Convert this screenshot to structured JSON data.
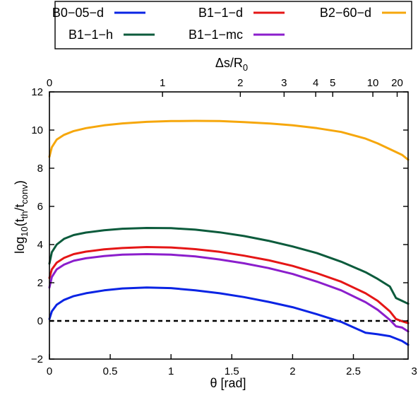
{
  "chart_data": {
    "type": "line",
    "xlabel": "θ [rad]",
    "ylabel_base": "log",
    "ylabel_base_sub": "10",
    "ylabel_paren_open": "(t",
    "ylabel_num_sub": "th",
    "ylabel_slash": "/t",
    "ylabel_den_sub": "conv",
    "ylabel_paren_close": ")",
    "top_xlabel_main": "Δs/R",
    "top_xlabel_sub": "0",
    "xlim": [
      0,
      2.95
    ],
    "ylim": [
      -2,
      12
    ],
    "x_ticks": [
      "0",
      "0.5",
      "1",
      "1.5",
      "2",
      "2.5",
      "3"
    ],
    "x_tick_values": [
      0,
      0.5,
      1,
      1.5,
      2,
      2.5,
      3
    ],
    "y_ticks": [
      "−2",
      "0",
      "2",
      "4",
      "6",
      "8",
      "10",
      "12"
    ],
    "y_tick_values": [
      -2,
      0,
      2,
      4,
      6,
      8,
      10,
      12
    ],
    "top_ticks": [
      {
        "label": "0",
        "theta": 0.0
      },
      {
        "label": "1",
        "theta": 0.93
      },
      {
        "label": "2",
        "theta": 1.57
      },
      {
        "label": "3",
        "theta": 1.93
      },
      {
        "label": "4",
        "theta": 2.19
      },
      {
        "label": "5",
        "theta": 2.33
      },
      {
        "label": "10",
        "theta": 2.66
      },
      {
        "label": "20",
        "theta": 2.86
      }
    ],
    "reference_line": {
      "y": 0,
      "style": "dashed",
      "color": "#000000"
    },
    "legend_placement": "top, boxed",
    "series": [
      {
        "name": "B0−05−d",
        "color": "#0a24e4",
        "x": [
          0,
          0.02,
          0.06,
          0.12,
          0.2,
          0.3,
          0.45,
          0.6,
          0.8,
          1.0,
          1.2,
          1.4,
          1.6,
          1.8,
          2.0,
          2.2,
          2.4,
          2.6,
          2.7,
          2.8,
          2.9,
          2.95
        ],
        "y": [
          0.1,
          0.5,
          0.85,
          1.1,
          1.3,
          1.45,
          1.6,
          1.7,
          1.75,
          1.72,
          1.6,
          1.45,
          1.25,
          1.0,
          0.72,
          0.35,
          -0.05,
          -0.62,
          -0.7,
          -0.8,
          -1.05,
          -1.25
        ]
      },
      {
        "name": "B1−1−d",
        "color": "#e51616",
        "x": [
          0,
          0.02,
          0.06,
          0.12,
          0.2,
          0.3,
          0.45,
          0.6,
          0.8,
          1.0,
          1.2,
          1.4,
          1.6,
          1.8,
          2.0,
          2.2,
          2.4,
          2.6,
          2.7,
          2.8,
          2.85,
          2.9,
          2.95
        ],
        "y": [
          2.25,
          2.7,
          3.05,
          3.3,
          3.5,
          3.63,
          3.75,
          3.82,
          3.87,
          3.85,
          3.76,
          3.62,
          3.42,
          3.18,
          2.88,
          2.5,
          2.05,
          1.45,
          1.05,
          0.5,
          0.1,
          -0.02,
          -0.12
        ]
      },
      {
        "name": "B2−60−d",
        "color": "#f6a70c",
        "x": [
          0,
          0.02,
          0.06,
          0.12,
          0.2,
          0.3,
          0.45,
          0.6,
          0.8,
          1.0,
          1.2,
          1.4,
          1.6,
          1.8,
          2.0,
          2.2,
          2.4,
          2.6,
          2.7,
          2.8,
          2.9,
          2.95
        ],
        "y": [
          8.6,
          9.1,
          9.5,
          9.75,
          9.95,
          10.1,
          10.25,
          10.35,
          10.43,
          10.47,
          10.48,
          10.47,
          10.42,
          10.35,
          10.25,
          10.1,
          9.9,
          9.55,
          9.3,
          9.0,
          8.7,
          8.45
        ]
      },
      {
        "name": "B1−1−h",
        "color": "#0c5b3c",
        "x": [
          0,
          0.02,
          0.06,
          0.12,
          0.2,
          0.3,
          0.45,
          0.6,
          0.8,
          1.0,
          1.2,
          1.4,
          1.6,
          1.8,
          2.0,
          2.2,
          2.4,
          2.6,
          2.7,
          2.8,
          2.85,
          2.9,
          2.95
        ],
        "y": [
          3.0,
          3.6,
          4.0,
          4.3,
          4.5,
          4.63,
          4.75,
          4.83,
          4.87,
          4.86,
          4.78,
          4.64,
          4.45,
          4.2,
          3.9,
          3.55,
          3.1,
          2.55,
          2.2,
          1.8,
          1.2,
          1.05,
          0.9
        ]
      },
      {
        "name": "B1−1−mc",
        "color": "#8b1ecc",
        "x": [
          0,
          0.02,
          0.06,
          0.12,
          0.2,
          0.3,
          0.45,
          0.6,
          0.8,
          1.0,
          1.2,
          1.4,
          1.6,
          1.8,
          2.0,
          2.2,
          2.4,
          2.6,
          2.7,
          2.8,
          2.85,
          2.9,
          2.95
        ],
        "y": [
          1.75,
          2.3,
          2.7,
          2.95,
          3.15,
          3.28,
          3.4,
          3.47,
          3.5,
          3.47,
          3.38,
          3.22,
          3.02,
          2.77,
          2.46,
          2.06,
          1.6,
          0.98,
          0.58,
          0.05,
          -0.28,
          -0.35,
          -0.55
        ]
      }
    ]
  }
}
